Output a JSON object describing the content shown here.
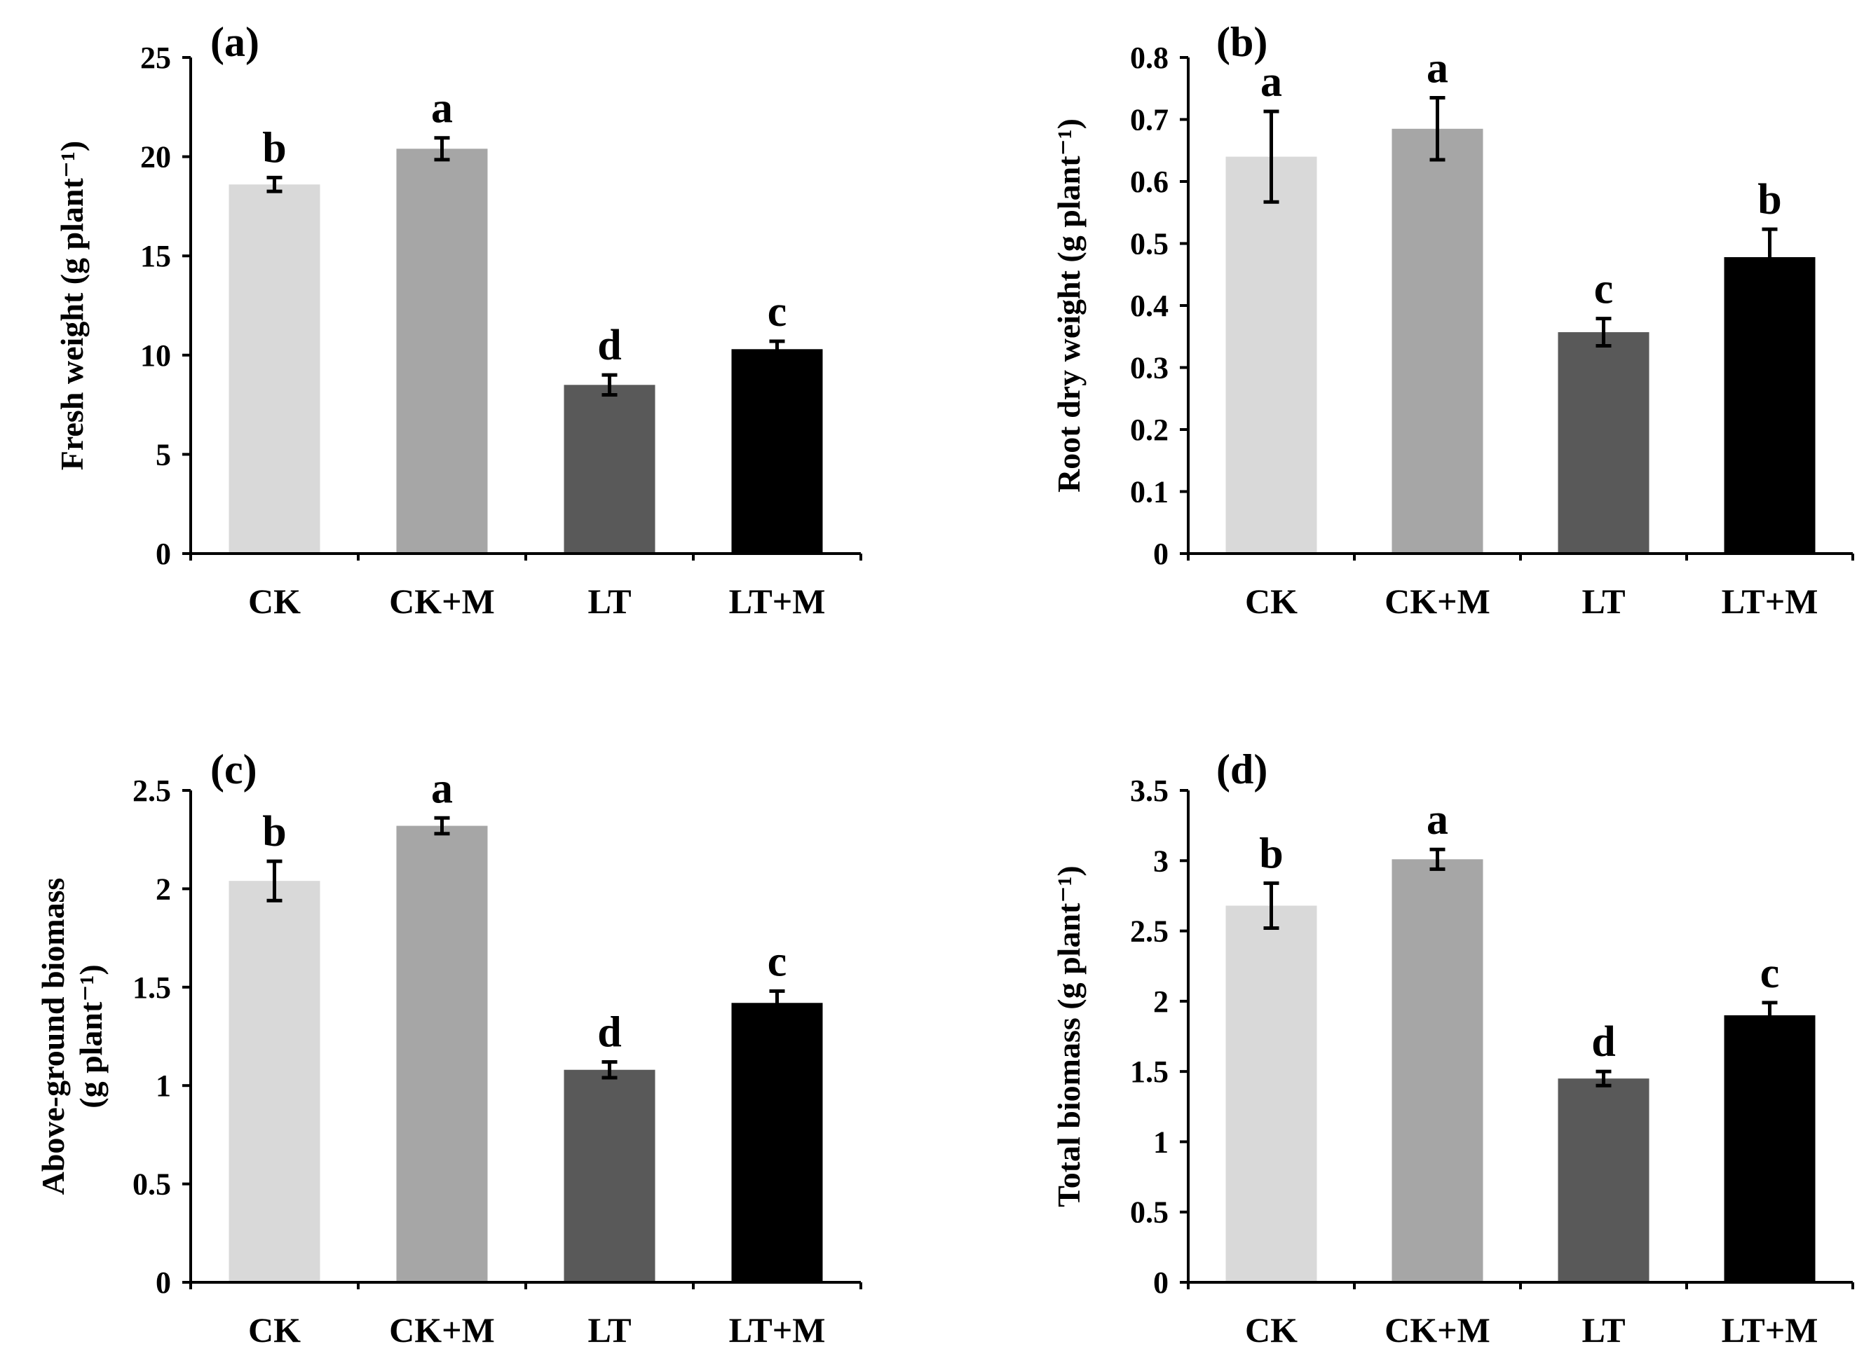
{
  "figure": {
    "colors": {
      "CK": "#d9d9d9",
      "CK+M": "#a6a6a6",
      "LT": "#595959",
      "LT+M": "#000000",
      "letter": "#595959",
      "axis": "#000000"
    }
  },
  "chart_data": [
    {
      "type": "bar",
      "panel": "(a)",
      "categories": [
        "CK",
        "CK+M",
        "LT",
        "LT+M"
      ],
      "values": [
        18.6,
        20.4,
        8.5,
        10.3
      ],
      "errors": [
        0.35,
        0.55,
        0.5,
        0.4
      ],
      "letters": [
        "b",
        "a",
        "d",
        "c"
      ],
      "ylabel_lines": [
        "Fresh weight (g plant⁻¹)"
      ],
      "ylim": [
        0,
        25
      ],
      "yticks": [
        0,
        5,
        10,
        15,
        20,
        25
      ],
      "ytick_labels": [
        "0",
        "5",
        "10",
        "15",
        "20",
        "25"
      ],
      "grid": false
    },
    {
      "type": "bar",
      "panel": "(b)",
      "categories": [
        "CK",
        "CK+M",
        "LT",
        "LT+M"
      ],
      "values": [
        0.64,
        0.685,
        0.357,
        0.478
      ],
      "errors": [
        0.073,
        0.05,
        0.022,
        0.045
      ],
      "letters": [
        "a",
        "a",
        "c",
        "b"
      ],
      "ylabel_lines": [
        "Root dry weight (g plant⁻¹)"
      ],
      "ylim": [
        0,
        0.8
      ],
      "yticks": [
        0,
        0.1,
        0.2,
        0.3,
        0.4,
        0.5,
        0.6,
        0.7,
        0.8
      ],
      "ytick_labels": [
        "0",
        "0.1",
        "0.2",
        "0.3",
        "0.4",
        "0.5",
        "0.6",
        "0.7",
        "0.8"
      ],
      "grid": false
    },
    {
      "type": "bar",
      "panel": "(c)",
      "categories": [
        "CK",
        "CK+M",
        "LT",
        "LT+M"
      ],
      "values": [
        2.04,
        2.32,
        1.08,
        1.42
      ],
      "errors": [
        0.1,
        0.04,
        0.04,
        0.06
      ],
      "letters": [
        "b",
        "a",
        "d",
        "c"
      ],
      "ylabel_lines": [
        "Above-ground biomass",
        "(g plant⁻¹)"
      ],
      "ylim": [
        0,
        2.5
      ],
      "yticks": [
        0,
        0.5,
        1,
        1.5,
        2,
        2.5
      ],
      "ytick_labels": [
        "0",
        "0.5",
        "1",
        "1.5",
        "2",
        "2.5"
      ],
      "grid": false
    },
    {
      "type": "bar",
      "panel": "(d)",
      "categories": [
        "CK",
        "CK+M",
        "LT",
        "LT+M"
      ],
      "values": [
        2.68,
        3.01,
        1.45,
        1.9
      ],
      "errors": [
        0.16,
        0.07,
        0.05,
        0.09
      ],
      "letters": [
        "b",
        "a",
        "d",
        "c"
      ],
      "ylabel_lines": [
        "Total  biomass (g plant⁻¹)"
      ],
      "ylim": [
        0,
        3.5
      ],
      "yticks": [
        0,
        0.5,
        1,
        1.5,
        2,
        2.5,
        3,
        3.5
      ],
      "ytick_labels": [
        "0",
        "0.5",
        "1",
        "1.5",
        "2",
        "2.5",
        "3",
        "3.5"
      ],
      "grid": false
    }
  ]
}
